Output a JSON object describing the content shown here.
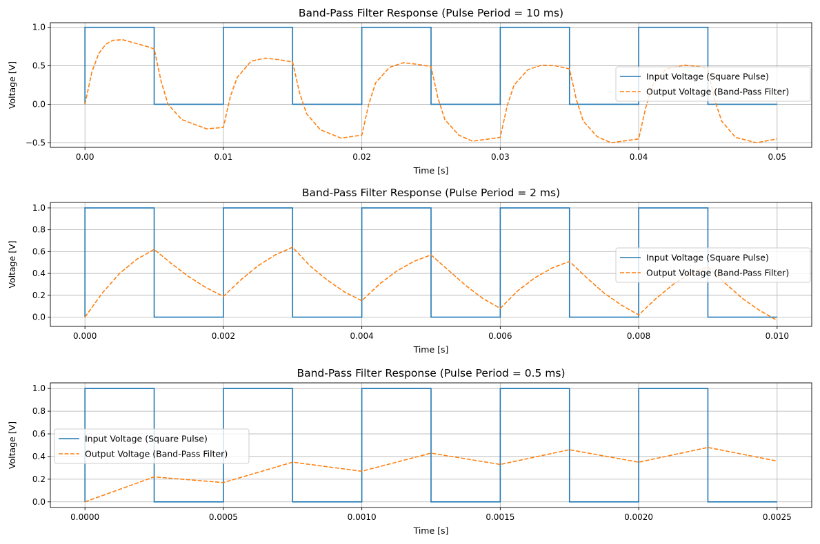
{
  "chart_data": [
    {
      "type": "line",
      "title": "Band-Pass Filter Response (Pulse Period = 10 ms)",
      "xlabel": "Time [s]",
      "ylabel": "Voltage [V]",
      "xlim": [
        -0.0025,
        0.0525
      ],
      "ylim": [
        -0.56,
        1.06
      ],
      "xticks": [
        0.0,
        0.01,
        0.02,
        0.03,
        0.04,
        0.05
      ],
      "xtick_labels": [
        "0.00",
        "0.01",
        "0.02",
        "0.03",
        "0.04",
        "0.05"
      ],
      "yticks": [
        -0.5,
        0.0,
        0.5,
        1.0
      ],
      "ytick_labels": [
        "−0.5",
        "0.0",
        "0.5",
        "1.0"
      ],
      "grid": true,
      "legend_position": "center-right",
      "series": [
        {
          "name": "Input Voltage (Square Pulse)",
          "style": "solid",
          "color": "#1f77b4",
          "x": [
            0.0,
            0.0,
            0.005,
            0.005,
            0.01,
            0.01,
            0.015,
            0.015,
            0.02,
            0.02,
            0.025,
            0.025,
            0.03,
            0.03,
            0.035,
            0.035,
            0.04,
            0.04,
            0.045,
            0.045,
            0.05
          ],
          "y": [
            0.0,
            1.0,
            1.0,
            0.0,
            0.0,
            1.0,
            1.0,
            0.0,
            0.0,
            1.0,
            1.0,
            0.0,
            0.0,
            1.0,
            1.0,
            0.0,
            0.0,
            1.0,
            1.0,
            0.0,
            0.0
          ]
        },
        {
          "name": "Output Voltage (Band-Pass Filter)",
          "style": "dashed",
          "color": "#ff7f0e",
          "x": [
            0.0,
            0.0005,
            0.001,
            0.0015,
            0.002,
            0.0027,
            0.0035,
            0.0045,
            0.005,
            0.0055,
            0.006,
            0.007,
            0.0088,
            0.01,
            0.0105,
            0.011,
            0.012,
            0.013,
            0.014,
            0.015,
            0.0155,
            0.016,
            0.017,
            0.0185,
            0.02,
            0.0205,
            0.021,
            0.022,
            0.023,
            0.024,
            0.025,
            0.0255,
            0.026,
            0.027,
            0.028,
            0.03,
            0.0305,
            0.031,
            0.032,
            0.033,
            0.034,
            0.035,
            0.0355,
            0.036,
            0.037,
            0.038,
            0.04,
            0.0405,
            0.041,
            0.042,
            0.0433,
            0.0445,
            0.045,
            0.0455,
            0.046,
            0.047,
            0.0485,
            0.05
          ],
          "y": [
            0.0,
            0.42,
            0.66,
            0.78,
            0.83,
            0.84,
            0.8,
            0.75,
            0.72,
            0.3,
            0.0,
            -0.2,
            -0.32,
            -0.3,
            0.1,
            0.35,
            0.56,
            0.6,
            0.58,
            0.55,
            0.15,
            -0.12,
            -0.33,
            -0.44,
            -0.4,
            0.0,
            0.28,
            0.48,
            0.54,
            0.52,
            0.49,
            0.08,
            -0.2,
            -0.4,
            -0.48,
            -0.43,
            -0.02,
            0.25,
            0.45,
            0.51,
            0.5,
            0.46,
            0.06,
            -0.22,
            -0.42,
            -0.5,
            -0.45,
            -0.05,
            0.25,
            0.46,
            0.51,
            0.49,
            0.45,
            0.05,
            -0.22,
            -0.43,
            -0.5,
            -0.45
          ]
        }
      ]
    },
    {
      "type": "line",
      "title": "Band-Pass Filter Response (Pulse Period = 2 ms)",
      "xlabel": "Time [s]",
      "ylabel": "Voltage [V]",
      "xlim": [
        -0.0005,
        0.0105
      ],
      "ylim": [
        -0.085,
        1.05
      ],
      "xticks": [
        0.0,
        0.002,
        0.004,
        0.006,
        0.008,
        0.01
      ],
      "xtick_labels": [
        "0.000",
        "0.002",
        "0.004",
        "0.006",
        "0.008",
        "0.010"
      ],
      "yticks": [
        0.0,
        0.2,
        0.4,
        0.6,
        0.8,
        1.0
      ],
      "ytick_labels": [
        "0.0",
        "0.2",
        "0.4",
        "0.6",
        "0.8",
        "1.0"
      ],
      "grid": true,
      "legend_position": "center-right",
      "series": [
        {
          "name": "Input Voltage (Square Pulse)",
          "style": "solid",
          "color": "#1f77b4",
          "x": [
            0.0,
            0.0,
            0.001,
            0.001,
            0.002,
            0.002,
            0.003,
            0.003,
            0.004,
            0.004,
            0.005,
            0.005,
            0.006,
            0.006,
            0.007,
            0.007,
            0.008,
            0.008,
            0.009,
            0.009,
            0.01
          ],
          "y": [
            0.0,
            1.0,
            1.0,
            0.0,
            0.0,
            1.0,
            1.0,
            0.0,
            0.0,
            1.0,
            1.0,
            0.0,
            0.0,
            1.0,
            1.0,
            0.0,
            0.0,
            1.0,
            1.0,
            0.0,
            0.0
          ]
        },
        {
          "name": "Output Voltage (Band-Pass Filter)",
          "style": "dashed",
          "color": "#ff7f0e",
          "x": [
            0.0,
            0.00025,
            0.0005,
            0.00075,
            0.001,
            0.00125,
            0.0015,
            0.00175,
            0.002,
            0.00225,
            0.0025,
            0.00275,
            0.003,
            0.00325,
            0.0035,
            0.00375,
            0.004,
            0.00425,
            0.0045,
            0.00475,
            0.005,
            0.00525,
            0.0055,
            0.00575,
            0.006,
            0.00625,
            0.0065,
            0.00675,
            0.007,
            0.00725,
            0.0075,
            0.00775,
            0.008,
            0.00825,
            0.0085,
            0.00875,
            0.009,
            0.00925,
            0.0095,
            0.00975,
            0.01
          ],
          "y": [
            0.0,
            0.22,
            0.4,
            0.53,
            0.62,
            0.49,
            0.37,
            0.27,
            0.19,
            0.34,
            0.47,
            0.57,
            0.64,
            0.47,
            0.34,
            0.23,
            0.15,
            0.3,
            0.42,
            0.51,
            0.57,
            0.43,
            0.29,
            0.17,
            0.08,
            0.24,
            0.36,
            0.45,
            0.51,
            0.36,
            0.22,
            0.11,
            0.02,
            0.17,
            0.3,
            0.4,
            0.46,
            0.31,
            0.17,
            0.06,
            -0.03
          ]
        }
      ]
    },
    {
      "type": "line",
      "title": "Band-Pass Filter Response (Pulse Period = 0.5 ms)",
      "xlabel": "Time [s]",
      "ylabel": "Voltage [V]",
      "xlim": [
        -0.000125,
        0.002625
      ],
      "ylim": [
        -0.05,
        1.05
      ],
      "xticks": [
        0.0,
        0.0005,
        0.001,
        0.0015,
        0.002,
        0.0025
      ],
      "xtick_labels": [
        "0.0000",
        "0.0005",
        "0.0010",
        "0.0015",
        "0.0020",
        "0.0025"
      ],
      "yticks": [
        0.0,
        0.2,
        0.4,
        0.6,
        0.8,
        1.0
      ],
      "ytick_labels": [
        "0.0",
        "0.2",
        "0.4",
        "0.6",
        "0.8",
        "1.0"
      ],
      "grid": true,
      "legend_position": "center-left",
      "series": [
        {
          "name": "Input Voltage (Square Pulse)",
          "style": "solid",
          "color": "#1f77b4",
          "x": [
            0.0,
            0.0,
            0.00025,
            0.00025,
            0.0005,
            0.0005,
            0.00075,
            0.00075,
            0.001,
            0.001,
            0.00125,
            0.00125,
            0.0015,
            0.0015,
            0.00175,
            0.00175,
            0.002,
            0.002,
            0.00225,
            0.00225,
            0.0025
          ],
          "y": [
            0.0,
            1.0,
            1.0,
            0.0,
            0.0,
            1.0,
            1.0,
            0.0,
            0.0,
            1.0,
            1.0,
            0.0,
            0.0,
            1.0,
            1.0,
            0.0,
            0.0,
            1.0,
            1.0,
            0.0,
            0.0
          ]
        },
        {
          "name": "Output Voltage (Band-Pass Filter)",
          "style": "dashed",
          "color": "#ff7f0e",
          "x": [
            0.0,
            0.00025,
            0.0005,
            0.00075,
            0.001,
            0.00125,
            0.0015,
            0.00175,
            0.002,
            0.00225,
            0.0025
          ],
          "y": [
            0.0,
            0.22,
            0.17,
            0.35,
            0.27,
            0.43,
            0.33,
            0.46,
            0.35,
            0.48,
            0.36
          ]
        }
      ]
    }
  ]
}
